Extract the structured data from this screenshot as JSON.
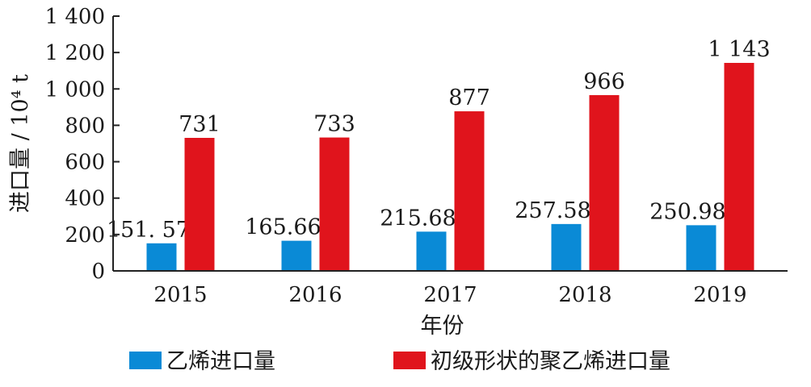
{
  "chart_data": {
    "type": "bar",
    "categories": [
      "2015",
      "2016",
      "2017",
      "2018",
      "2019"
    ],
    "series": [
      {
        "name": "乙烯进口量",
        "color": "#0a8ad6",
        "values": [
          151.57,
          165.66,
          215.68,
          257.58,
          250.98
        ],
        "labels": [
          "151. 57",
          "165.66",
          "215.68",
          "257.58",
          "250.98"
        ]
      },
      {
        "name": "初级形状的聚乙烯进口量",
        "color": "#e0141c",
        "values": [
          731,
          733,
          877,
          966,
          1143
        ],
        "labels": [
          "731",
          "733",
          "877",
          "966",
          "1 143"
        ]
      }
    ],
    "xlabel": "年份",
    "ylabel": "进口量 / 10⁴ t",
    "ylim": [
      0,
      1400
    ],
    "yticks": [
      0,
      200,
      400,
      600,
      800,
      1000,
      1200,
      1400
    ],
    "ytick_labels": [
      "0",
      "200",
      "400",
      "600",
      "800",
      "1 000",
      "1 200",
      "1 400"
    ],
    "grid": false,
    "legend_position": "bottom"
  }
}
